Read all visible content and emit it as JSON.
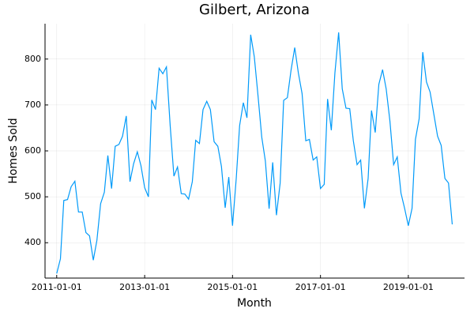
{
  "chart_data": {
    "type": "line",
    "title": "Gilbert, Arizona",
    "x_label": "Month",
    "y_label": "Homes Sold",
    "x": [
      "2011-01-01",
      "2011-02-01",
      "2011-03-01",
      "2011-04-01",
      "2011-05-01",
      "2011-06-01",
      "2011-07-01",
      "2011-08-01",
      "2011-09-01",
      "2011-10-01",
      "2011-11-01",
      "2011-12-01",
      "2012-01-01",
      "2012-02-01",
      "2012-03-01",
      "2012-04-01",
      "2012-05-01",
      "2012-06-01",
      "2012-07-01",
      "2012-08-01",
      "2012-09-01",
      "2012-10-01",
      "2012-11-01",
      "2012-12-01",
      "2013-01-01",
      "2013-02-01",
      "2013-03-01",
      "2013-04-01",
      "2013-05-01",
      "2013-06-01",
      "2013-07-01",
      "2013-08-01",
      "2013-09-01",
      "2013-10-01",
      "2013-11-01",
      "2013-12-01",
      "2014-01-01",
      "2014-02-01",
      "2014-03-01",
      "2014-04-01",
      "2014-05-01",
      "2014-06-01",
      "2014-07-01",
      "2014-08-01",
      "2014-09-01",
      "2014-10-01",
      "2014-11-01",
      "2014-12-01",
      "2015-01-01",
      "2015-02-01",
      "2015-03-01",
      "2015-04-01",
      "2015-05-01",
      "2015-06-01",
      "2015-07-01",
      "2015-08-01",
      "2015-09-01",
      "2015-10-01",
      "2015-11-01",
      "2015-12-01",
      "2016-01-01",
      "2016-02-01",
      "2016-03-01",
      "2016-04-01",
      "2016-05-01",
      "2016-06-01",
      "2016-07-01",
      "2016-08-01",
      "2016-09-01",
      "2016-10-01",
      "2016-11-01",
      "2016-12-01",
      "2017-01-01",
      "2017-02-01",
      "2017-03-01",
      "2017-04-01",
      "2017-05-01",
      "2017-06-01",
      "2017-07-01",
      "2017-08-01",
      "2017-09-01",
      "2017-10-01",
      "2017-11-01",
      "2017-12-01",
      "2018-01-01",
      "2018-02-01",
      "2018-03-01",
      "2018-04-01",
      "2018-05-01",
      "2018-06-01",
      "2018-07-01",
      "2018-08-01",
      "2018-09-01",
      "2018-10-01",
      "2018-11-01",
      "2018-12-01",
      "2019-01-01",
      "2019-02-01",
      "2019-03-01",
      "2019-04-01",
      "2019-05-01",
      "2019-06-01",
      "2019-07-01",
      "2019-08-01",
      "2019-09-01",
      "2019-10-01",
      "2019-11-01",
      "2019-12-01",
      "2020-01-01"
    ],
    "series": [
      {
        "color": "#009af9",
        "values": [
          333,
          365,
          492,
          494,
          522,
          534,
          467,
          467,
          422,
          415,
          362,
          405,
          485,
          510,
          590,
          518,
          610,
          614,
          632,
          676,
          533,
          572,
          598,
          568,
          520,
          500,
          711,
          690,
          780,
          768,
          783,
          655,
          545,
          565,
          507,
          506,
          495,
          533,
          623,
          616,
          690,
          708,
          690,
          620,
          610,
          566,
          476,
          543,
          437,
          540,
          655,
          705,
          672,
          853,
          805,
          720,
          630,
          578,
          474,
          575,
          460,
          530,
          710,
          716,
          775,
          825,
          770,
          725,
          622,
          625,
          580,
          587,
          518,
          527,
          713,
          645,
          770,
          858,
          735,
          693,
          692,
          622,
          570,
          580,
          475,
          540,
          688,
          640,
          745,
          777,
          735,
          665,
          570,
          587,
          508,
          475,
          437,
          475,
          625,
          670,
          815,
          750,
          728,
          680,
          632,
          612,
          540,
          530,
          440
        ]
      }
    ],
    "xlim": [
      "2010-09-26",
      "2020-04-12"
    ],
    "xticks": [
      "2011-01-01",
      "2013-01-01",
      "2015-01-01",
      "2017-01-01",
      "2019-01-01"
    ],
    "ylim": [
      323,
      877
    ],
    "yticks": [
      400,
      500,
      600,
      700,
      800
    ],
    "grid": true
  }
}
